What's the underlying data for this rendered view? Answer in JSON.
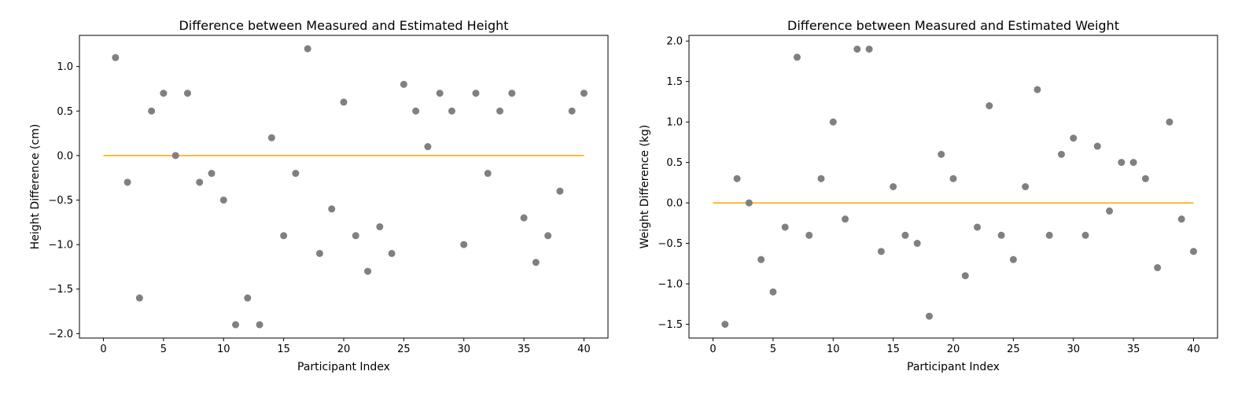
{
  "chart_data": [
    {
      "type": "scatter",
      "title": "Difference between Measured and Estimated Height",
      "xlabel": "Participant Index",
      "ylabel": "Height Difference (cm)",
      "xlim": [
        -2,
        42
      ],
      "ylim": [
        -2.05,
        1.35
      ],
      "xticks": [
        0,
        5,
        10,
        15,
        20,
        25,
        30,
        35,
        40
      ],
      "yticks": [
        -2.0,
        -1.5,
        -1.0,
        -0.5,
        0.0,
        0.5,
        1.0
      ],
      "x": [
        1,
        2,
        3,
        4,
        5,
        6,
        7,
        8,
        9,
        10,
        11,
        12,
        13,
        14,
        15,
        16,
        17,
        18,
        19,
        20,
        21,
        22,
        23,
        24,
        25,
        26,
        27,
        28,
        29,
        30,
        31,
        32,
        33,
        34,
        35,
        36,
        37,
        38,
        39,
        40
      ],
      "y": [
        1.1,
        -0.3,
        -1.6,
        0.5,
        0.7,
        0.0,
        0.7,
        -0.3,
        -0.2,
        -0.5,
        -1.9,
        -1.6,
        -1.9,
        0.2,
        -0.9,
        -0.2,
        1.2,
        -1.1,
        -0.6,
        0.6,
        -0.9,
        -1.3,
        -0.8,
        -1.1,
        0.8,
        0.5,
        0.1,
        0.7,
        0.5,
        -1.0,
        0.7,
        -0.2,
        0.5,
        0.7,
        -0.7,
        -1.2,
        -0.9,
        -0.4,
        0.5,
        0.7
      ],
      "reference_line": {
        "x": [
          0,
          40
        ],
        "y": 0
      },
      "point_color": "#808080",
      "line_color": "#FFA500",
      "grid": false
    },
    {
      "type": "scatter",
      "title": "Difference between Measured and Estimated Weight",
      "xlabel": "Participant Index",
      "ylabel": "Weight Difference (kg)",
      "xlim": [
        -2,
        42
      ],
      "ylim": [
        -1.67,
        2.07
      ],
      "xticks": [
        0,
        5,
        10,
        15,
        20,
        25,
        30,
        35,
        40
      ],
      "yticks": [
        -1.5,
        -1.0,
        -0.5,
        0.0,
        0.5,
        1.0,
        1.5,
        2.0
      ],
      "x": [
        1,
        2,
        3,
        4,
        5,
        6,
        7,
        8,
        9,
        10,
        11,
        12,
        13,
        14,
        15,
        16,
        17,
        18,
        19,
        20,
        21,
        22,
        23,
        24,
        25,
        26,
        27,
        28,
        29,
        30,
        31,
        32,
        33,
        34,
        35,
        36,
        37,
        38,
        39,
        40
      ],
      "y": [
        -1.5,
        0.3,
        0.0,
        -0.7,
        -1.1,
        -0.3,
        1.8,
        -0.4,
        0.3,
        1.0,
        -0.2,
        1.9,
        1.9,
        -0.6,
        0.2,
        -0.4,
        -0.5,
        -1.4,
        0.6,
        0.3,
        -0.9,
        -0.3,
        1.2,
        -0.4,
        -0.7,
        0.2,
        1.4,
        -0.4,
        0.6,
        0.8,
        -0.4,
        0.7,
        -0.1,
        0.5,
        0.5,
        0.3,
        -0.8,
        1.0,
        -0.2,
        -0.6
      ],
      "reference_line": {
        "x": [
          0,
          40
        ],
        "y": 0
      },
      "point_color": "#808080",
      "line_color": "#FFA500",
      "grid": false
    }
  ]
}
